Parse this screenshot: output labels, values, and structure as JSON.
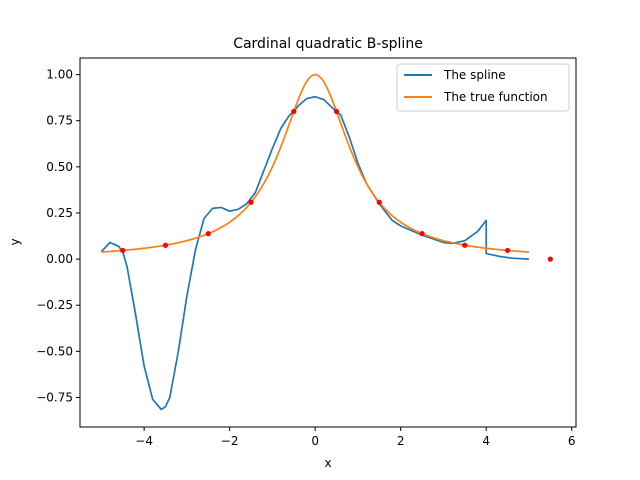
{
  "chart_data": {
    "type": "line",
    "title": "Cardinal quadratic B-spline",
    "xlabel": "x",
    "ylabel": "y",
    "xlim": [
      -5.5,
      6.1
    ],
    "ylim": [
      -0.91,
      1.09
    ],
    "xticks": [
      -4,
      -2,
      0,
      2,
      4,
      6
    ],
    "xtick_labels": [
      "−4",
      "−2",
      "0",
      "2",
      "4",
      "6"
    ],
    "yticks": [
      -0.75,
      -0.5,
      -0.25,
      0.0,
      0.25,
      0.5,
      0.75,
      1.0
    ],
    "ytick_labels": [
      "−0.75",
      "−0.50",
      "−0.25",
      "0.00",
      "0.25",
      "0.50",
      "0.75",
      "1.00"
    ],
    "grid": false,
    "legend_position": "top-right",
    "series": [
      {
        "name": "The spline",
        "color": "#1f77b4",
        "x": [
          -5.0,
          -4.8,
          -4.6,
          -4.5,
          -4.4,
          -4.2,
          -4.0,
          -3.8,
          -3.6,
          -3.5,
          -3.4,
          -3.2,
          -3.0,
          -2.8,
          -2.6,
          -2.4,
          -2.2,
          -2.1,
          -2.0,
          -1.8,
          -1.6,
          -1.4,
          -1.2,
          -1.0,
          -0.8,
          -0.6,
          -0.5,
          -0.4,
          -0.2,
          0.0,
          0.2,
          0.4,
          0.5,
          0.6,
          0.8,
          1.0,
          1.2,
          1.5,
          1.8,
          2.0,
          2.5,
          3.0,
          3.2,
          3.5,
          3.8,
          4.0,
          4.001,
          4.3,
          4.6,
          5.0
        ],
        "y": [
          0.04,
          0.09,
          0.07,
          0.04,
          -0.04,
          -0.3,
          -0.58,
          -0.76,
          -0.815,
          -0.8,
          -0.75,
          -0.5,
          -0.2,
          0.05,
          0.22,
          0.275,
          0.28,
          0.27,
          0.26,
          0.27,
          0.3,
          0.36,
          0.48,
          0.6,
          0.71,
          0.78,
          0.8,
          0.83,
          0.87,
          0.88,
          0.865,
          0.82,
          0.8,
          0.78,
          0.66,
          0.52,
          0.41,
          0.3,
          0.21,
          0.18,
          0.13,
          0.09,
          0.085,
          0.1,
          0.15,
          0.21,
          0.03,
          0.015,
          0.005,
          0.0
        ]
      },
      {
        "name": "The true function",
        "color": "#ff7f0e",
        "function": "1/(1+x^2)",
        "x_range": [
          -5.0,
          5.0
        ]
      }
    ],
    "sample_points": {
      "color": "#ff0000",
      "x": [
        -4.5,
        -3.5,
        -2.5,
        -1.5,
        -0.5,
        0.5,
        1.5,
        2.5,
        3.5,
        4.5,
        5.5
      ],
      "y": [
        0.047,
        0.075,
        0.138,
        0.308,
        0.8,
        0.8,
        0.308,
        0.138,
        0.075,
        0.047,
        0.0
      ]
    }
  }
}
